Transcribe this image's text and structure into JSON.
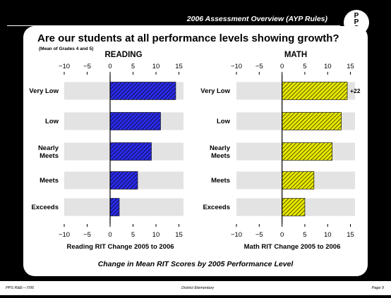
{
  "header": {
    "title": "2006 Assessment Overview (AYP Rules)",
    "logo_text": "PPS"
  },
  "panel": {
    "title": "Are our students at all performance levels showing growth?",
    "subtitle": "(Mean of Grades 4 and 5)",
    "caption": "Change in Mean RIT Scores by 2005 Performance Level"
  },
  "footer": {
    "left": "PPS R&E—7/06",
    "center": "District Elementary",
    "right": "Page 9"
  },
  "colors": {
    "reading_bar": "#2a2ae6",
    "math_bar": "#e8e800",
    "track": "#e3e3e3",
    "hatch": "#000000"
  },
  "chart_data": [
    {
      "type": "bar",
      "orientation": "horizontal",
      "title": "READING",
      "xlabel": "Reading RIT Change 2005 to 2006",
      "categories": [
        "Very Low",
        "Low",
        "Nearly Meets",
        "Meets",
        "Exceeds"
      ],
      "values": [
        15,
        11,
        9,
        6,
        2
      ],
      "xlim": [
        -10,
        16
      ],
      "xticks": [
        "−10",
        "−5",
        "0",
        "5",
        "10",
        "15"
      ],
      "bar_labels": [
        "",
        "",
        "",
        "",
        ""
      ],
      "grid": false
    },
    {
      "type": "bar",
      "orientation": "horizontal",
      "title": "MATH",
      "xlabel": "Math RIT Change 2005 to 2006",
      "categories": [
        "Very Low",
        "Low",
        "Nearly Meets",
        "Meets",
        "Exceeds"
      ],
      "values": [
        22,
        13,
        11,
        7,
        5
      ],
      "xlim": [
        -10,
        16
      ],
      "xticks": [
        "−10",
        "−5",
        "0",
        "5",
        "10",
        "15"
      ],
      "bar_labels": [
        "+22",
        "",
        "",
        "",
        ""
      ],
      "grid": false
    }
  ]
}
